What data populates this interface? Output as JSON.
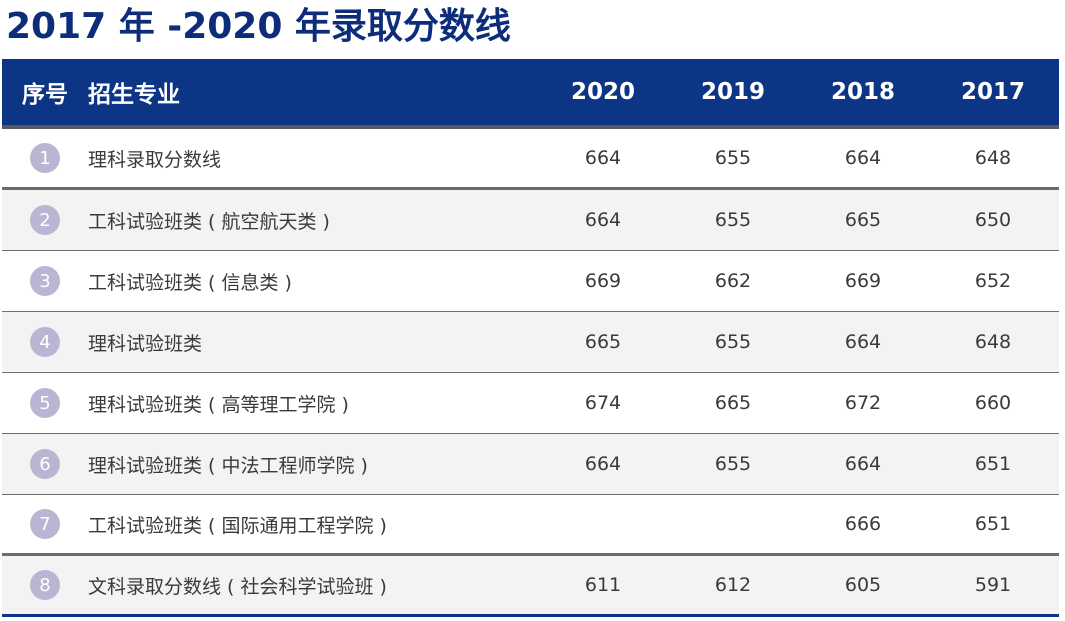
{
  "title": "2017 年 -2020 年录取分数线",
  "table": {
    "headers": {
      "no": "序号",
      "major": "招生专业",
      "y2020": "2020",
      "y2019": "2019",
      "y2018": "2018",
      "y2017": "2017"
    },
    "rows": [
      {
        "no": "1",
        "major": "理科录取分数线",
        "y2020": "664",
        "y2019": "655",
        "y2018": "664",
        "y2017": "648"
      },
      {
        "no": "2",
        "major": "工科试验班类 ( 航空航天类 )",
        "y2020": "664",
        "y2019": "655",
        "y2018": "665",
        "y2017": "650"
      },
      {
        "no": "3",
        "major": "工科试验班类 ( 信息类 )",
        "y2020": "669",
        "y2019": "662",
        "y2018": "669",
        "y2017": "652"
      },
      {
        "no": "4",
        "major": "理科试验班类",
        "y2020": "665",
        "y2019": "655",
        "y2018": "664",
        "y2017": "648"
      },
      {
        "no": "5",
        "major": "理科试验班类 ( 高等理工学院 )",
        "y2020": "674",
        "y2019": "665",
        "y2018": "672",
        "y2017": "660"
      },
      {
        "no": "6",
        "major": "理科试验班类 ( 中法工程师学院 )",
        "y2020": "664",
        "y2019": "655",
        "y2018": "664",
        "y2017": "651"
      },
      {
        "no": "7",
        "major": "工科试验班类 ( 国际通用工程学院 )",
        "y2020": "",
        "y2019": "",
        "y2018": "666",
        "y2017": "651"
      },
      {
        "no": "8",
        "major": "文科录取分数线 ( 社会科学试验班 )",
        "y2020": "611",
        "y2019": "612",
        "y2018": "605",
        "y2017": "591"
      }
    ]
  }
}
